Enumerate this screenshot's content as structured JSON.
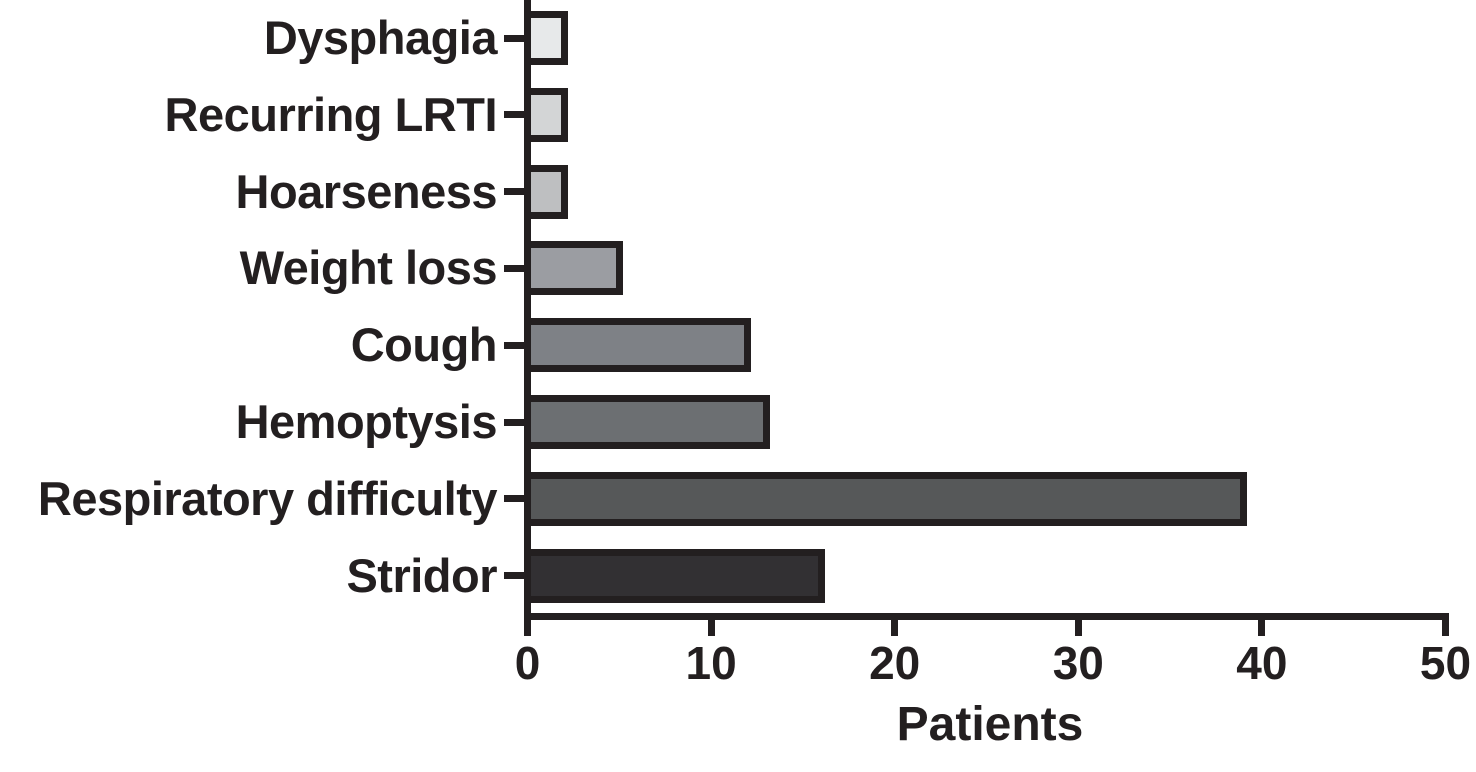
{
  "chart_data": {
    "type": "bar",
    "orientation": "horizontal",
    "title": "",
    "xlabel": "Patients",
    "ylabel": "",
    "categories": [
      "Dysphagia",
      "Recurring LRTI",
      "Hoarseness",
      "Weight loss",
      "Cough",
      "Hemoptysis",
      "Respiratory difficulty",
      "Stridor"
    ],
    "values": [
      2,
      2,
      2,
      5,
      12,
      13,
      39,
      16
    ],
    "bar_colors": [
      "#e7e9ea",
      "#d3d5d6",
      "#bebfc1",
      "#9b9da2",
      "#7e8186",
      "#6c6f72",
      "#565859",
      "#323033"
    ],
    "axis_color": "#231f20",
    "xlim": [
      0,
      50
    ],
    "xticks": [
      0,
      10,
      20,
      30,
      40,
      50
    ],
    "grid": false,
    "legend": null
  }
}
